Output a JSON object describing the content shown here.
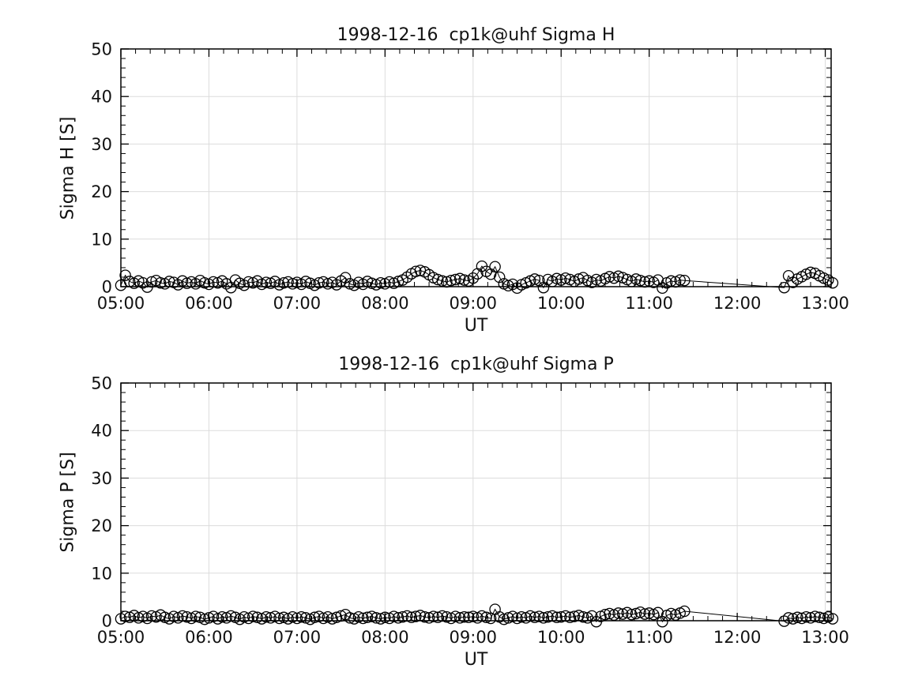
{
  "figure": {
    "background": "#ffffff",
    "text_color": "#111111",
    "axis_color": "#000000",
    "grid_color": "#dcdcdc",
    "marker_color": "#000000"
  },
  "chart_data": [
    {
      "type": "line",
      "title": "1998-12-16  cp1k@uhf Sigma H",
      "xlabel": "UT",
      "ylabel": "Sigma H [S]",
      "ylim": [
        0,
        50
      ],
      "yticks": [
        0,
        10,
        20,
        30,
        40,
        50
      ],
      "ytick_minor_step": 2,
      "xlim_minutes": [
        300,
        784
      ],
      "xticks": [
        {
          "minute": 300,
          "label": "05:00"
        },
        {
          "minute": 360,
          "label": "06:00"
        },
        {
          "minute": 420,
          "label": "07:00"
        },
        {
          "minute": 480,
          "label": "08:00"
        },
        {
          "minute": 540,
          "label": "09:00"
        },
        {
          "minute": 600,
          "label": "10:00"
        },
        {
          "minute": 660,
          "label": "11:00"
        },
        {
          "minute": 720,
          "label": "12:00"
        },
        {
          "minute": 780,
          "label": "13:00"
        }
      ],
      "xtick_minor_step_minutes": 10,
      "grid": true,
      "legend": "none",
      "marker": "open-circle",
      "series": [
        {
          "name": "Sigma H",
          "segments": [
            {
              "start_minute": 300,
              "step_minutes": 3,
              "values": [
                0.3,
                2.4,
                1.1,
                0.7,
                1.2,
                0.8,
                -0.1,
                1.0,
                1.3,
                0.8,
                0.6,
                1.1,
                0.9,
                0.4,
                1.2,
                0.7,
                1.0,
                0.6,
                1.3,
                0.8,
                0.5,
                1.0,
                0.8,
                1.2,
                0.6,
                -0.2,
                1.4,
                0.7,
                0.3,
                1.0,
                0.8,
                1.2,
                0.5,
                0.9,
                0.7,
                1.1,
                0.4,
                0.8,
                1.0,
                0.6,
                0.9,
                0.5,
                1.1,
                0.7,
                0.3,
                0.8,
                1.0,
                0.6,
                0.9,
                0.4,
                1.2,
                1.9,
                0.6,
                0.3,
                0.9,
                0.5,
                1.1,
                0.7,
                0.4,
                0.8,
                0.6,
                1.0,
                0.7,
                1.1,
                1.4,
                2.0,
                2.7,
                3.2,
                3.4,
                3.1,
                2.5,
                1.9,
                1.5,
                1.2,
                1.0,
                1.3,
                1.5,
                1.7,
                1.4,
                1.2,
                1.8,
                2.7,
                4.3,
                3.2,
                2.6,
                4.2,
                2.0,
                0.6,
                0.2,
                0.5,
                -0.3,
                0.4,
                0.8,
                1.2,
                1.6,
                1.3,
                -0.2,
                1.5,
                1.1,
                1.7,
                1.4,
                1.8,
                1.5,
                1.1,
                1.6,
                1.9,
                1.3,
                0.9,
                1.5,
                1.2,
                1.7,
                2.1,
                1.8,
                2.2,
                1.9,
                1.5,
                1.1,
                1.6,
                1.3,
                1.0,
                1.2,
                0.9,
                1.4,
                -0.3,
                0.8,
                1.2,
                1.0,
                1.4,
                1.3
              ]
            },
            {
              "start_minute": 752,
              "step_minutes": 3,
              "values": [
                -0.2,
                2.3,
                0.9,
                1.6,
                2.1,
                2.6,
                3.0,
                2.8,
                2.3,
                1.8,
                1.4,
                0.8
              ]
            }
          ]
        }
      ]
    },
    {
      "type": "line",
      "title": "1998-12-16  cp1k@uhf Sigma P",
      "xlabel": "UT",
      "ylabel": "Sigma P [S]",
      "ylim": [
        0,
        50
      ],
      "yticks": [
        0,
        10,
        20,
        30,
        40,
        50
      ],
      "ytick_minor_step": 2,
      "xlim_minutes": [
        300,
        784
      ],
      "xticks": [
        {
          "minute": 300,
          "label": "05:00"
        },
        {
          "minute": 360,
          "label": "06:00"
        },
        {
          "minute": 420,
          "label": "07:00"
        },
        {
          "minute": 480,
          "label": "08:00"
        },
        {
          "minute": 540,
          "label": "09:00"
        },
        {
          "minute": 600,
          "label": "10:00"
        },
        {
          "minute": 660,
          "label": "11:00"
        },
        {
          "minute": 720,
          "label": "12:00"
        },
        {
          "minute": 780,
          "label": "13:00"
        }
      ],
      "xtick_minor_step_minutes": 10,
      "grid": true,
      "legend": "none",
      "marker": "open-circle",
      "series": [
        {
          "name": "Sigma P",
          "segments": [
            {
              "start_minute": 300,
              "step_minutes": 3,
              "values": [
                0.4,
                0.9,
                0.7,
                1.1,
                0.6,
                0.9,
                0.5,
                1.0,
                0.8,
                1.2,
                0.7,
                0.4,
                0.9,
                0.6,
                1.0,
                0.8,
                0.5,
                0.9,
                0.7,
                0.3,
                0.6,
                0.9,
                0.4,
                0.8,
                0.6,
                1.0,
                0.7,
                0.3,
                0.8,
                0.5,
                0.9,
                0.7,
                0.4,
                0.8,
                0.6,
                0.9,
                0.5,
                0.7,
                0.4,
                0.8,
                0.5,
                0.8,
                0.6,
                0.3,
                0.7,
                0.9,
                0.5,
                0.8,
                0.4,
                0.7,
                1.0,
                1.3,
                0.6,
                0.4,
                0.8,
                0.5,
                0.7,
                0.9,
                0.6,
                0.4,
                0.7,
                0.5,
                0.9,
                0.6,
                0.8,
                1.0,
                0.7,
                0.9,
                1.1,
                0.8,
                0.6,
                0.9,
                0.7,
                1.0,
                0.8,
                0.5,
                0.9,
                0.6,
                0.8,
                0.7,
                0.9,
                0.6,
                1.0,
                0.7,
                0.5,
                2.4,
                0.8,
                0.3,
                0.6,
                0.9,
                0.5,
                0.8,
                0.6,
                1.0,
                0.7,
                0.9,
                0.6,
                0.8,
                1.0,
                0.7,
                0.8,
                1.0,
                0.7,
                0.9,
                1.1,
                0.8,
                0.6,
                1.0,
                -0.2,
                0.9,
                1.3,
                1.5,
                1.2,
                1.6,
                1.4,
                1.7,
                1.3,
                1.5,
                1.8,
                1.4,
                1.6,
                1.3,
                1.7,
                -0.2,
                1.1,
                1.5,
                1.2,
                1.6,
                2.0
              ]
            },
            {
              "start_minute": 752,
              "step_minutes": 3,
              "values": [
                -0.1,
                0.6,
                0.4,
                0.7,
                0.5,
                0.8,
                0.6,
                0.9,
                0.7,
                0.5,
                0.8,
                0.4
              ]
            }
          ]
        }
      ]
    }
  ]
}
